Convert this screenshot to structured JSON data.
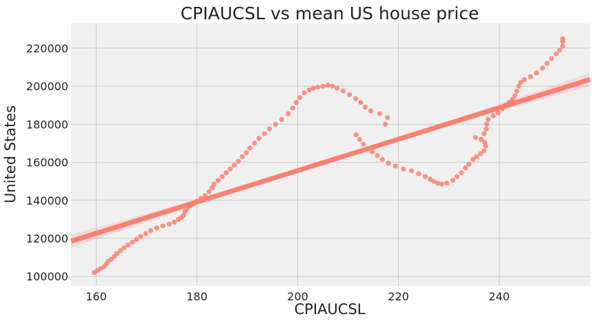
{
  "chart_data": {
    "type": "scatter",
    "title": "CPIAUCSL vs mean US house price",
    "xlabel": "CPIAUCSL",
    "ylabel": "United States",
    "xlim": [
      155,
      258
    ],
    "ylim": [
      95000,
      233000
    ],
    "xticks": [
      160,
      180,
      200,
      220,
      240
    ],
    "yticks": [
      100000,
      120000,
      140000,
      160000,
      180000,
      200000,
      220000
    ],
    "xtick_labels": [
      "160",
      "180",
      "200",
      "220",
      "240"
    ],
    "ytick_labels": [
      "100000",
      "120000",
      "140000",
      "160000",
      "180000",
      "200000",
      "220000"
    ],
    "grid": true,
    "colors": {
      "points": "#fa8072",
      "regression_line": "#fa8072",
      "confidence_band": "#fa8072",
      "background": "#f0f0f0",
      "grid": "#cbcbcb"
    },
    "regression": {
      "x": [
        155,
        258
      ],
      "y": [
        118500,
        203500
      ],
      "ci_half_width_at_ends": 3500,
      "ci_half_width_at_center": 800
    },
    "points": [
      [
        159.6,
        102000
      ],
      [
        160.2,
        103000
      ],
      [
        160.8,
        104000
      ],
      [
        161.5,
        105000
      ],
      [
        162.0,
        106500
      ],
      [
        162.4,
        108000
      ],
      [
        163.0,
        109000
      ],
      [
        163.6,
        110500
      ],
      [
        164.1,
        112000
      ],
      [
        164.8,
        113500
      ],
      [
        165.5,
        115000
      ],
      [
        166.3,
        116500
      ],
      [
        167.2,
        118000
      ],
      [
        168.0,
        119500
      ],
      [
        168.8,
        121000
      ],
      [
        169.8,
        122500
      ],
      [
        170.8,
        124000
      ],
      [
        172.0,
        125500
      ],
      [
        173.2,
        126500
      ],
      [
        174.5,
        127500
      ],
      [
        175.5,
        128500
      ],
      [
        176.3,
        130000
      ],
      [
        176.9,
        131000
      ],
      [
        177.3,
        132000
      ],
      [
        177.6,
        134000
      ],
      [
        178.0,
        135500
      ],
      [
        178.6,
        137000
      ],
      [
        179.3,
        138000
      ],
      [
        180.0,
        139500
      ],
      [
        180.8,
        141000
      ],
      [
        181.6,
        142500
      ],
      [
        182.4,
        144500
      ],
      [
        183.0,
        146500
      ],
      [
        183.4,
        148500
      ],
      [
        184.2,
        150500
      ],
      [
        185.0,
        152500
      ],
      [
        185.8,
        154500
      ],
      [
        186.6,
        156500
      ],
      [
        187.4,
        158500
      ],
      [
        188.2,
        160500
      ],
      [
        189.0,
        163000
      ],
      [
        189.8,
        165000
      ],
      [
        190.5,
        167500
      ],
      [
        191.4,
        170000
      ],
      [
        192.3,
        172500
      ],
      [
        193.4,
        175000
      ],
      [
        194.4,
        177500
      ],
      [
        195.6,
        180000
      ],
      [
        196.8,
        182500
      ],
      [
        198.1,
        185500
      ],
      [
        199.0,
        188500
      ],
      [
        199.7,
        191500
      ],
      [
        200.4,
        194000
      ],
      [
        201.3,
        196500
      ],
      [
        202.3,
        198000
      ],
      [
        203.1,
        199000
      ],
      [
        204.0,
        199500
      ],
      [
        205.0,
        200000
      ],
      [
        206.0,
        200500
      ],
      [
        206.9,
        200000
      ],
      [
        207.8,
        199000
      ],
      [
        209.0,
        197500
      ],
      [
        210.3,
        195500
      ],
      [
        211.5,
        193500
      ],
      [
        212.5,
        191500
      ],
      [
        213.4,
        189000
      ],
      [
        214.5,
        187000
      ],
      [
        216.3,
        185500
      ],
      [
        217.8,
        183500
      ],
      [
        217.4,
        180000
      ],
      [
        211.6,
        174500
      ],
      [
        212.3,
        172000
      ],
      [
        213.0,
        169500
      ],
      [
        213.9,
        167000
      ],
      [
        214.8,
        165500
      ],
      [
        215.8,
        163500
      ],
      [
        216.8,
        161500
      ],
      [
        218.0,
        159500
      ],
      [
        219.4,
        158000
      ],
      [
        221.0,
        156500
      ],
      [
        222.6,
        155500
      ],
      [
        224.0,
        154000
      ],
      [
        225.3,
        152500
      ],
      [
        226.3,
        151000
      ],
      [
        227.0,
        150000
      ],
      [
        227.8,
        149000
      ],
      [
        228.6,
        148500
      ],
      [
        229.6,
        149000
      ],
      [
        230.8,
        150500
      ],
      [
        231.6,
        152500
      ],
      [
        232.5,
        154500
      ],
      [
        233.3,
        157000
      ],
      [
        234.0,
        159000
      ],
      [
        234.8,
        161500
      ],
      [
        235.5,
        163000
      ],
      [
        236.3,
        164500
      ],
      [
        237.0,
        166000
      ],
      [
        237.3,
        168500
      ],
      [
        237.1,
        170500
      ],
      [
        236.4,
        172000
      ],
      [
        235.3,
        173000
      ],
      [
        237.0,
        175000
      ],
      [
        237.4,
        177500
      ],
      [
        237.5,
        180000
      ],
      [
        237.8,
        182500
      ],
      [
        238.8,
        184500
      ],
      [
        239.8,
        186000
      ],
      [
        240.6,
        188000
      ],
      [
        241.3,
        190000
      ],
      [
        242.0,
        191500
      ],
      [
        242.6,
        193000
      ],
      [
        243.1,
        195000
      ],
      [
        243.5,
        197500
      ],
      [
        243.9,
        200000
      ],
      [
        244.3,
        202000
      ],
      [
        245.0,
        203500
      ],
      [
        246.2,
        205000
      ],
      [
        247.4,
        207000
      ],
      [
        248.6,
        209500
      ],
      [
        249.5,
        212000
      ],
      [
        250.4,
        214500
      ],
      [
        251.3,
        217000
      ],
      [
        252.0,
        219000
      ],
      [
        252.6,
        221000
      ],
      [
        252.6,
        223500
      ],
      [
        252.6,
        225000
      ]
    ]
  }
}
